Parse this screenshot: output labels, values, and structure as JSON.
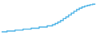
{
  "chart_data": {
    "type": "line",
    "line_style": "step",
    "x": [
      0,
      1,
      2,
      3,
      4,
      5,
      6,
      7,
      8,
      9,
      10,
      11,
      12,
      13,
      14,
      15,
      16,
      17,
      18,
      19,
      20,
      21,
      22,
      23,
      24,
      25,
      26,
      27,
      28,
      29,
      30,
      31,
      32,
      33,
      34,
      35
    ],
    "values": [
      0.2,
      0.2,
      0.5,
      0.5,
      0.5,
      0.9,
      0.9,
      0.9,
      1.3,
      1.3,
      1.3,
      1.7,
      1.7,
      1.7,
      2.2,
      2.2,
      2.2,
      2.7,
      2.7,
      3.2,
      3.7,
      4.3,
      5.0,
      5.8,
      6.5,
      7.3,
      8.1,
      8.9,
      9.6,
      10.2,
      10.7,
      11.1,
      11.4,
      11.7,
      11.9,
      12.1
    ],
    "color": "#4db3e6",
    "xlim": [
      0,
      35
    ],
    "ylim": [
      -0.5,
      13.0
    ],
    "tick_labels": false,
    "grid": false
  }
}
